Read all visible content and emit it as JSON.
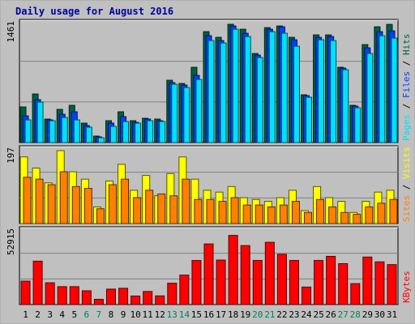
{
  "chart_data": {
    "type": "bar",
    "title": "Daily usage for August 2016",
    "days": [
      "1",
      "2",
      "3",
      "4",
      "5",
      "6",
      "7",
      "8",
      "9",
      "10",
      "11",
      "12",
      "13",
      "14",
      "15",
      "16",
      "17",
      "18",
      "19",
      "20",
      "21",
      "22",
      "23",
      "24",
      "25",
      "26",
      "27",
      "28",
      "29",
      "30",
      "31"
    ],
    "weekend_days": [
      "6",
      "7",
      "13",
      "14",
      "20",
      "21",
      "27",
      "28"
    ],
    "colors": {
      "hits": "#006040",
      "files": "#0040ff",
      "pages": "#00e0ff",
      "visits": "#ffff00",
      "sites": "#ff8000",
      "kbytes": "#ff0000",
      "weekday_label": "#000000",
      "weekend_label": "#00805c",
      "grid": "#808080",
      "panel_background": "#c0c0c0"
    },
    "top_panel": {
      "max_label": "1461",
      "ylim": [
        0,
        1461
      ],
      "legend": [
        {
          "key": "pages",
          "label": "Pages"
        },
        {
          "key": "sep",
          "label": " / "
        },
        {
          "key": "files",
          "label": "Files"
        },
        {
          "key": "sep",
          "label": " / "
        },
        {
          "key": "hits",
          "label": "Hits"
        }
      ],
      "series": [
        {
          "name": "Hits",
          "key": "hits",
          "values": [
            440,
            600,
            290,
            410,
            460,
            240,
            80,
            270,
            380,
            270,
            300,
            290,
            770,
            730,
            930,
            1370,
            1300,
            1461,
            1400,
            1100,
            1420,
            1440,
            1300,
            590,
            1330,
            1330,
            930,
            460,
            1210,
            1430,
            1460
          ]
        },
        {
          "name": "Files",
          "key": "files",
          "values": [
            330,
            530,
            280,
            350,
            380,
            210,
            70,
            240,
            320,
            250,
            290,
            270,
            740,
            710,
            830,
            1320,
            1260,
            1440,
            1350,
            1080,
            1400,
            1430,
            1270,
            580,
            1300,
            1310,
            920,
            450,
            1170,
            1370,
            1380
          ]
        },
        {
          "name": "Pages",
          "key": "pages",
          "values": [
            280,
            500,
            270,
            310,
            280,
            190,
            60,
            200,
            260,
            240,
            270,
            260,
            720,
            680,
            780,
            1260,
            1230,
            1400,
            1310,
            1050,
            1370,
            1350,
            1190,
            560,
            1270,
            1260,
            900,
            430,
            1100,
            1320,
            1290
          ]
        }
      ]
    },
    "middle_panel": {
      "max_label": "197",
      "ylim": [
        0,
        197
      ],
      "legend": [
        {
          "key": "sites",
          "label": "Sites"
        },
        {
          "key": "sep",
          "label": " / "
        },
        {
          "key": "visits",
          "label": "Visits"
        }
      ],
      "series": [
        {
          "name": "Visits",
          "key": "visits",
          "values": [
            180,
            150,
            110,
            197,
            140,
            120,
            45,
            115,
            160,
            90,
            130,
            75,
            135,
            180,
            120,
            90,
            85,
            100,
            70,
            65,
            60,
            70,
            90,
            35,
            100,
            70,
            60,
            30,
            60,
            85,
            90
          ]
        },
        {
          "name": "Sites",
          "key": "sites",
          "values": [
            125,
            120,
            105,
            140,
            100,
            95,
            40,
            105,
            120,
            70,
            90,
            80,
            75,
            120,
            65,
            65,
            60,
            70,
            50,
            50,
            45,
            50,
            60,
            30,
            65,
            45,
            30,
            25,
            45,
            55,
            65
          ]
        }
      ]
    },
    "bottom_panel": {
      "max_label": "52915",
      "ylim": [
        0,
        52915
      ],
      "legend": [
        {
          "key": "kbytes",
          "label": "KByte"
        },
        {
          "key": "kbytes",
          "label": "s"
        }
      ],
      "series": [
        {
          "name": "KBytes",
          "key": "kbytes",
          "values": [
            17000,
            31500,
            15800,
            13000,
            13000,
            10000,
            3800,
            11200,
            11800,
            6200,
            9500,
            6300,
            15500,
            21400,
            32000,
            44000,
            32300,
            50200,
            42800,
            32000,
            45200,
            36500,
            32000,
            12700,
            32000,
            35000,
            29700,
            15200,
            34500,
            31000,
            29000
          ]
        }
      ]
    }
  }
}
